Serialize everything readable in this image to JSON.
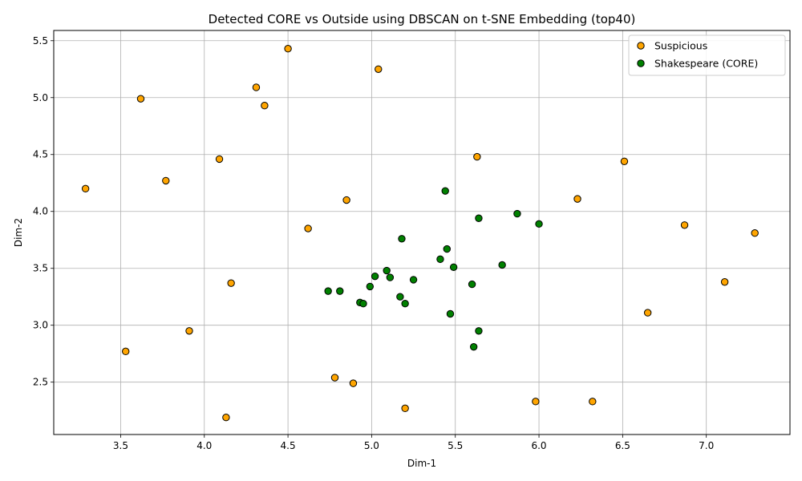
{
  "chart_data": {
    "type": "scatter",
    "title": "Detected CORE vs Outside using DBSCAN on t-SNE Embedding (top40)",
    "xlabel": "Dim-1",
    "ylabel": "Dim-2",
    "xlim": [
      3.1,
      7.5
    ],
    "ylim": [
      2.04,
      5.59
    ],
    "xticks": [
      "3.5",
      "4.0",
      "4.5",
      "5.0",
      "5.5",
      "6.0",
      "6.5",
      "7.0"
    ],
    "yticks": [
      "2.5",
      "3.0",
      "3.5",
      "4.0",
      "4.5",
      "5.0",
      "5.5"
    ],
    "grid": true,
    "legend_position": "top-right",
    "series": [
      {
        "name": "Suspicious",
        "color": "#ffa500",
        "points": [
          [
            3.29,
            4.2
          ],
          [
            3.53,
            2.77
          ],
          [
            3.62,
            4.99
          ],
          [
            3.77,
            4.27
          ],
          [
            3.91,
            2.95
          ],
          [
            4.09,
            4.46
          ],
          [
            4.13,
            2.19
          ],
          [
            4.16,
            3.37
          ],
          [
            4.31,
            5.09
          ],
          [
            4.36,
            4.93
          ],
          [
            4.5,
            5.43
          ],
          [
            4.62,
            3.85
          ],
          [
            4.78,
            2.54
          ],
          [
            4.85,
            4.1
          ],
          [
            4.89,
            2.49
          ],
          [
            5.04,
            5.25
          ],
          [
            5.2,
            2.27
          ],
          [
            5.63,
            4.48
          ],
          [
            5.98,
            2.33
          ],
          [
            6.23,
            4.11
          ],
          [
            6.32,
            2.33
          ],
          [
            6.51,
            4.44
          ],
          [
            6.65,
            3.11
          ],
          [
            6.87,
            3.88
          ],
          [
            7.11,
            3.38
          ],
          [
            7.29,
            3.81
          ]
        ]
      },
      {
        "name": "Shakespeare (CORE)",
        "color": "#008000",
        "points": [
          [
            4.74,
            3.3
          ],
          [
            4.81,
            3.3
          ],
          [
            4.93,
            3.2
          ],
          [
            4.95,
            3.19
          ],
          [
            4.99,
            3.34
          ],
          [
            5.02,
            3.43
          ],
          [
            5.09,
            3.48
          ],
          [
            5.11,
            3.42
          ],
          [
            5.17,
            3.25
          ],
          [
            5.18,
            3.76
          ],
          [
            5.2,
            3.19
          ],
          [
            5.25,
            3.4
          ],
          [
            5.41,
            3.58
          ],
          [
            5.44,
            4.18
          ],
          [
            5.45,
            3.67
          ],
          [
            5.47,
            3.1
          ],
          [
            5.49,
            3.51
          ],
          [
            5.6,
            3.36
          ],
          [
            5.61,
            2.81
          ],
          [
            5.64,
            3.94
          ],
          [
            5.64,
            2.95
          ],
          [
            5.78,
            3.53
          ],
          [
            5.87,
            3.98
          ],
          [
            6.0,
            3.89
          ]
        ]
      }
    ]
  }
}
